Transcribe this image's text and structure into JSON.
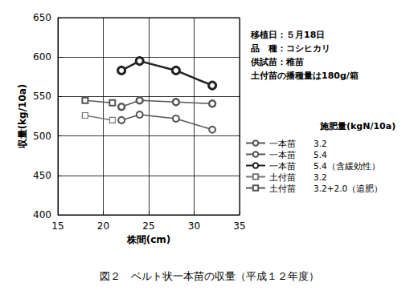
{
  "chart_data": {
    "type": "line",
    "title": "図２　ベルト状一本苗の収量（平成１２年度）",
    "xlabel": "株間(cm)",
    "ylabel": "収量(kg/10a)",
    "xlim": [
      15,
      35
    ],
    "xticks": [
      15,
      20,
      25,
      30,
      35
    ],
    "ylim": [
      400,
      650
    ],
    "yticks": [
      400,
      450,
      500,
      550,
      600,
      650
    ],
    "grid": true,
    "legend": "right",
    "legend_title": "施肥量(kgN/10a)",
    "annotations": [
      "移植日：５月18日",
      "品　種：コシヒカリ",
      "供試苗：稚苗",
      "土付苗の播種量は180g/箱"
    ],
    "series": [
      {
        "name": "一本苗　　3.2",
        "color": "#555555",
        "marker": "open_circle",
        "x": [
          22,
          24,
          28,
          32
        ],
        "values": [
          520,
          527,
          522,
          508
        ]
      },
      {
        "name": "一本苗　　5.4",
        "color": "#555555",
        "marker": "dot_circle",
        "x": [
          22,
          24,
          28,
          32
        ],
        "values": [
          537,
          545,
          543,
          541
        ]
      },
      {
        "name": "一本苗　　5.4（含緩効性）",
        "color": "#222222",
        "marker": "bold_circle",
        "x": [
          22,
          24,
          28,
          32
        ],
        "values": [
          583,
          595,
          583,
          564
        ]
      },
      {
        "name": "土付苗　　3.2",
        "color": "#777777",
        "marker": "open_square",
        "x": [
          18,
          21
        ],
        "values": [
          526,
          520
        ]
      },
      {
        "name": "土付苗　　3.2+2.0（追肥）",
        "color": "#555555",
        "marker": "dot_square",
        "x": [
          18,
          21
        ],
        "values": [
          545,
          542
        ]
      }
    ]
  }
}
